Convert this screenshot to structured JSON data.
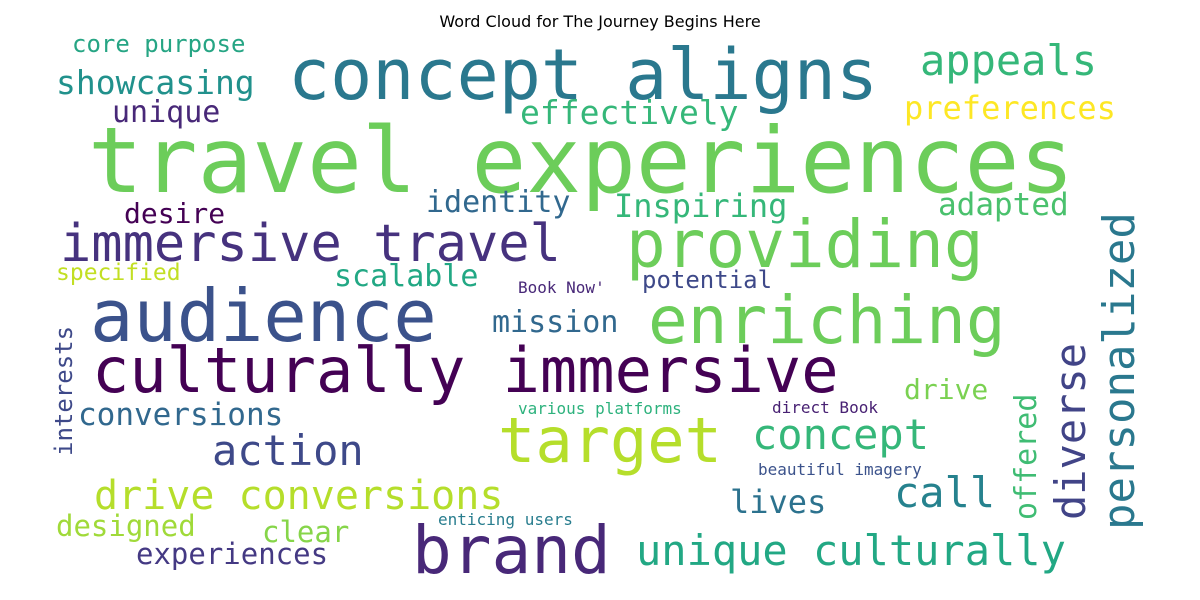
{
  "title": "Word Cloud for The Journey Begins Here",
  "words": [
    {
      "text": "travel experiences",
      "color": "#6ccd5a"
    },
    {
      "text": "concept aligns",
      "color": "#2a788e"
    },
    {
      "text": "audience",
      "color": "#3b528b"
    },
    {
      "text": "culturally immersive",
      "color": "#440154"
    },
    {
      "text": "providing",
      "color": "#6ccd5a"
    },
    {
      "text": "enriching",
      "color": "#6ccd5a"
    },
    {
      "text": "immersive travel",
      "color": "#46327e"
    },
    {
      "text": "brand",
      "color": "#482878"
    },
    {
      "text": "target",
      "color": "#b5de2b"
    },
    {
      "text": "unique culturally",
      "color": "#22a884"
    },
    {
      "text": "drive conversions",
      "color": "#b5de2b"
    },
    {
      "text": "appeals",
      "color": "#35b779"
    },
    {
      "text": "concept",
      "color": "#35b779"
    },
    {
      "text": "action",
      "color": "#3e4989"
    },
    {
      "text": "call",
      "color": "#26828e"
    },
    {
      "text": "showcasing",
      "color": "#21918c"
    },
    {
      "text": "effectively",
      "color": "#35b779"
    },
    {
      "text": "preferences",
      "color": "#fde725"
    },
    {
      "text": "unique",
      "color": "#482878"
    },
    {
      "text": "core purpose",
      "color": "#26a584"
    },
    {
      "text": "Inspiring",
      "color": "#35b779"
    },
    {
      "text": "identity",
      "color": "#31688e"
    },
    {
      "text": "desire",
      "color": "#440154"
    },
    {
      "text": "adapted",
      "color": "#4ac16d"
    },
    {
      "text": "scalable",
      "color": "#22a884"
    },
    {
      "text": "specified",
      "color": "#c2df23"
    },
    {
      "text": "mission",
      "color": "#31688e"
    },
    {
      "text": "potential",
      "color": "#3e4989"
    },
    {
      "text": "Book Now'",
      "color": "#482878"
    },
    {
      "text": "conversions",
      "color": "#31688e"
    },
    {
      "text": "drive",
      "color": "#7ad151"
    },
    {
      "text": "lives",
      "color": "#2c728e"
    },
    {
      "text": "designed",
      "color": "#a0da39"
    },
    {
      "text": "clear",
      "color": "#86d549"
    },
    {
      "text": "experiences",
      "color": "#443983"
    },
    {
      "text": "various platforms",
      "color": "#2db27d"
    },
    {
      "text": "direct Book",
      "color": "#482173"
    },
    {
      "text": "beautiful imagery",
      "color": "#3b528b"
    },
    {
      "text": "enticing users",
      "color": "#287d8e"
    },
    {
      "text": "personalized",
      "color": "#2a788e"
    },
    {
      "text": "diverse",
      "color": "#414487"
    },
    {
      "text": "offered",
      "color": "#3fbc73"
    },
    {
      "text": "interests",
      "color": "#3e4989"
    }
  ]
}
